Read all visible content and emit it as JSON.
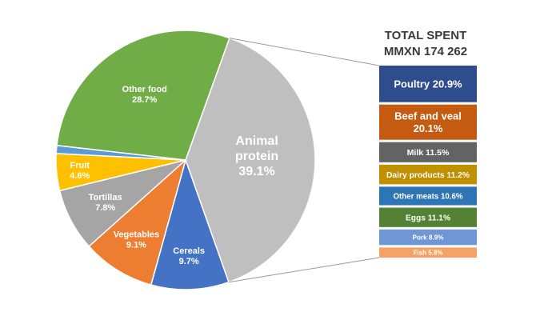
{
  "chart_data": [
    {
      "type": "pie",
      "slices": [
        {
          "label": "Animal protein",
          "value": 39.1,
          "value_text": "39.1%",
          "color": "#bfbfbf"
        },
        {
          "label": "Cereals",
          "value": 9.7,
          "value_text": "9.7%",
          "color": "#4472c4"
        },
        {
          "label": "Vegetables",
          "value": 9.1,
          "value_text": "9.1%",
          "color": "#ed7d31"
        },
        {
          "label": "Tortillas",
          "value": 7.8,
          "value_text": "7.8%",
          "color": "#a5a5a5"
        },
        {
          "label": "Fruit",
          "value": 4.6,
          "value_text": "4.6%",
          "color": "#ffc000"
        },
        {
          "label": "",
          "value": 1.0,
          "value_text": "",
          "color": "#5b9bd5"
        },
        {
          "label": "Other food",
          "value": 28.7,
          "value_text": "28.7%",
          "color": "#70ad47"
        }
      ]
    },
    {
      "type": "bar",
      "title_line1": "TOTAL SPENT",
      "title_line2": "MMXN 174 262",
      "segments": [
        {
          "label": "Poultry 20.9%",
          "value": 20.9,
          "color": "#2f4c8c"
        },
        {
          "label": "Beef and veal 20.1%",
          "value": 20.1,
          "color": "#c55a11"
        },
        {
          "label": "Milk 11.5%",
          "value": 11.5,
          "color": "#636363"
        },
        {
          "label": "Dairy products 11.2%",
          "value": 11.2,
          "color": "#bf9000"
        },
        {
          "label": "Other meats 10.6%",
          "value": 10.6,
          "color": "#2e75b6"
        },
        {
          "label": "Eggs 11.1%",
          "value": 11.1,
          "color": "#548235"
        },
        {
          "label": "Pork 8.9%",
          "value": 8.9,
          "color": "#6f96d6"
        },
        {
          "label": "Fish 5.8%",
          "value": 5.8,
          "color": "#f4a266"
        }
      ]
    }
  ]
}
